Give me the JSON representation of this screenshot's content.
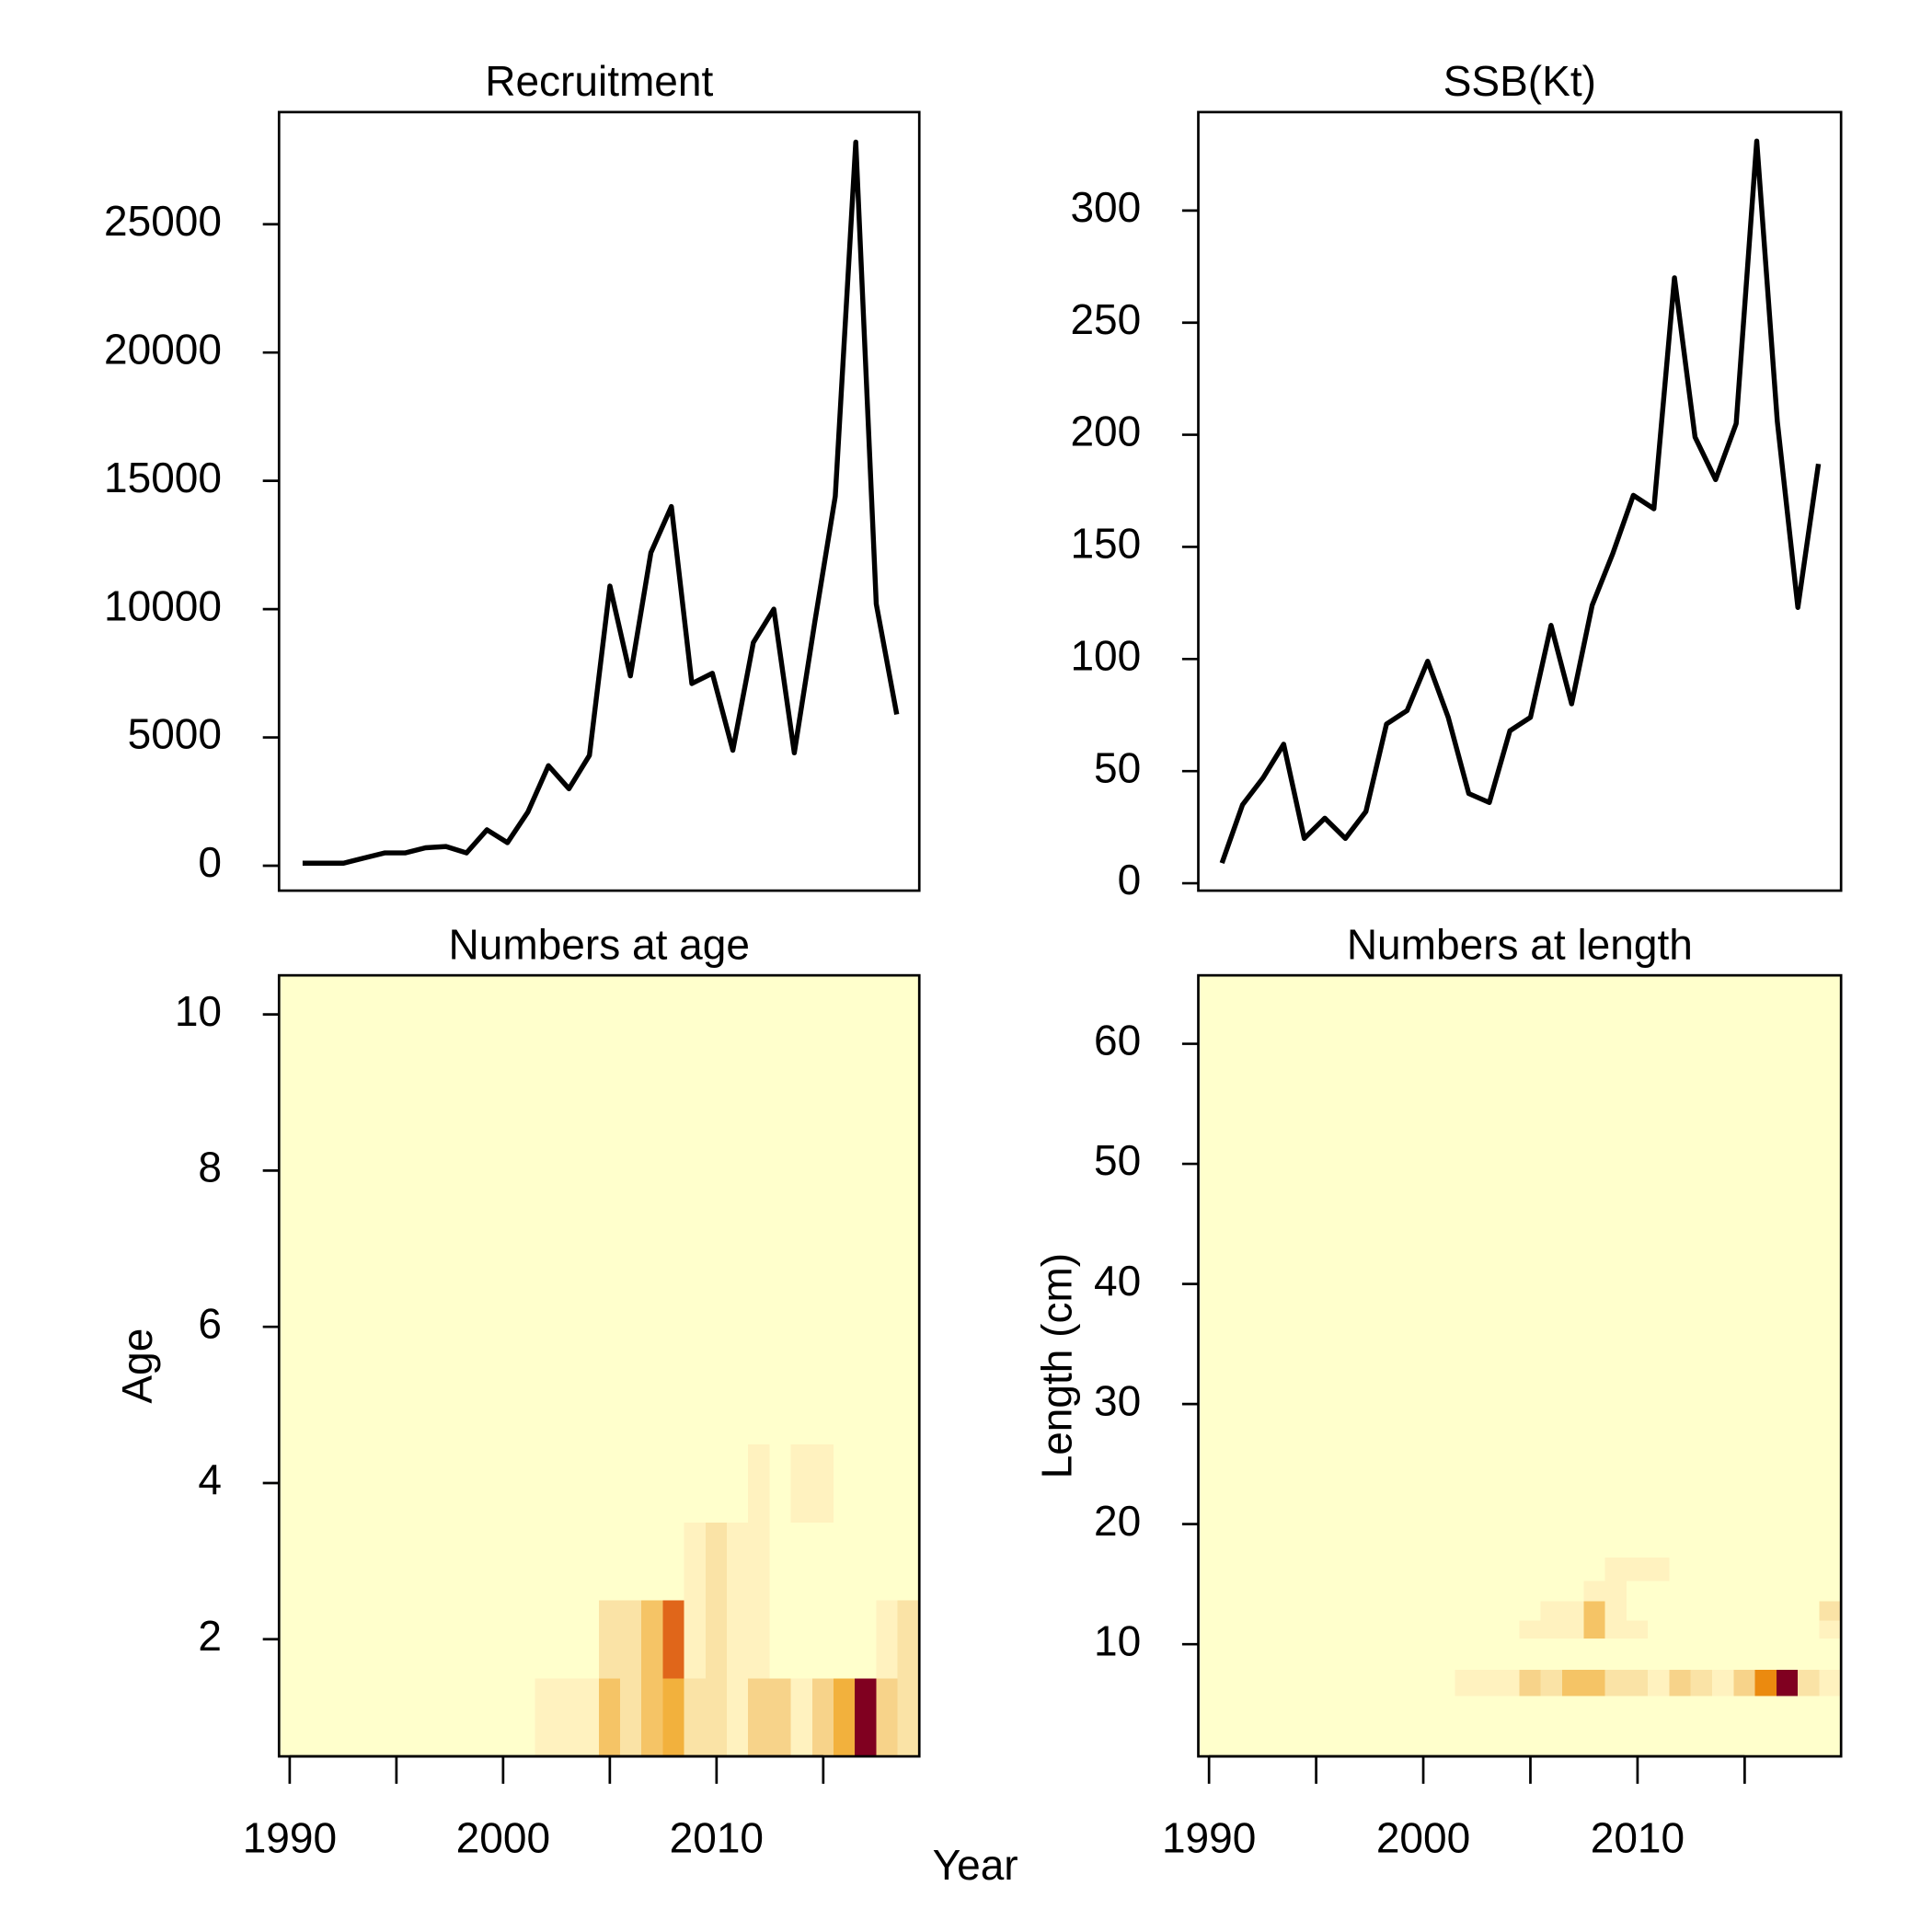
{
  "xlabel": "Year",
  "chart_data": [
    {
      "type": "line",
      "title": "Recruitment",
      "color": "#000000",
      "x": [
        1990,
        1991,
        1992,
        1993,
        1994,
        1995,
        1996,
        1997,
        1998,
        1999,
        2000,
        2001,
        2002,
        2003,
        2004,
        2005,
        2006,
        2007,
        2008,
        2009,
        2010,
        2011,
        2012,
        2013,
        2014,
        2015,
        2016,
        2017,
        2018,
        2019
      ],
      "values": [
        100,
        100,
        100,
        300,
        500,
        500,
        700,
        750,
        500,
        1400,
        900,
        2100,
        3900,
        3000,
        4300,
        10900,
        7400,
        12200,
        14000,
        7100,
        7500,
        4500,
        8700,
        10000,
        4400,
        9500,
        14400,
        28200,
        10200,
        5900
      ],
      "xlim": [
        1988.85,
        2020.1
      ],
      "ylim": [
        -970,
        29370
      ],
      "yticks": [
        0,
        5000,
        10000,
        15000,
        20000,
        25000
      ]
    },
    {
      "type": "line",
      "title": "SSB(Kt)",
      "color": "#000000",
      "x": [
        1990,
        1991,
        1992,
        1993,
        1994,
        1995,
        1996,
        1997,
        1998,
        1999,
        2000,
        2001,
        2002,
        2003,
        2004,
        2005,
        2006,
        2007,
        2008,
        2009,
        2010,
        2011,
        2012,
        2013,
        2014,
        2015,
        2016,
        2017,
        2018,
        2019
      ],
      "values": [
        9,
        35,
        47,
        62,
        20,
        29,
        20,
        32,
        71,
        77,
        99,
        74,
        40,
        36,
        68,
        74,
        115,
        80,
        124,
        147,
        173,
        167,
        270,
        199,
        180,
        205,
        331,
        206,
        123,
        187
      ],
      "xlim": [
        1988.85,
        2020.1
      ],
      "ylim": [
        -3.3,
        343.9
      ],
      "yticks": [
        0,
        50,
        100,
        150,
        200,
        250,
        300
      ]
    },
    {
      "type": "heatmap",
      "title": "Numbers at age",
      "ylabel": "Age",
      "palette": [
        "#FFFFCC",
        "#FFF2BF",
        "#FAE3A6",
        "#F7D38A",
        "#F5C466",
        "#F2B13D",
        "#F0A30F",
        "#EB8A0F",
        "#E0661A",
        "#D4401A",
        "#B31A1A",
        "#800020"
      ],
      "x": [
        1990,
        1991,
        1992,
        1993,
        1994,
        1995,
        1996,
        1997,
        1998,
        1999,
        2000,
        2001,
        2002,
        2003,
        2004,
        2005,
        2006,
        2007,
        2008,
        2009,
        2010,
        2011,
        2012,
        2013,
        2014,
        2015,
        2016,
        2017,
        2018,
        2019
      ],
      "ybins": [
        0.5,
        1.5,
        2.5,
        3.5,
        4.5,
        5.5,
        6.5,
        7.5,
        8.5,
        9.5,
        10.5
      ],
      "z": [
        [
          100,
          100,
          100,
          300,
          500,
          500,
          700,
          750,
          500,
          1400,
          900,
          2100,
          3900,
          3000,
          4300,
          10900,
          7400,
          12200,
          14000,
          7100,
          7500,
          4500,
          8700,
          10000,
          4400,
          9500,
          14400,
          28200,
          10200,
          5900
        ],
        [
          0,
          0,
          0,
          0,
          0,
          0,
          0,
          0,
          0,
          0,
          0,
          0,
          0,
          0,
          0,
          6000,
          6000,
          12000,
          22000,
          3000,
          6000,
          3000,
          3000,
          0,
          0,
          0,
          0,
          0,
          3000,
          7000
        ],
        [
          0,
          0,
          0,
          0,
          0,
          0,
          0,
          0,
          0,
          0,
          0,
          0,
          0,
          0,
          0,
          0,
          0,
          0,
          0,
          3000,
          6000,
          5000,
          5000,
          0,
          0,
          0,
          0,
          0,
          0,
          0
        ],
        [
          0,
          0,
          0,
          0,
          0,
          0,
          0,
          0,
          0,
          0,
          0,
          0,
          0,
          0,
          0,
          0,
          0,
          0,
          0,
          0,
          0,
          0,
          2900,
          0,
          2900,
          2900,
          0,
          0,
          0,
          0
        ],
        [
          0,
          0,
          0,
          0,
          0,
          0,
          0,
          0,
          0,
          0,
          0,
          0,
          0,
          0,
          0,
          0,
          0,
          0,
          0,
          0,
          0,
          0,
          0,
          0,
          0,
          0,
          0,
          0,
          0,
          0
        ],
        [
          0,
          0,
          0,
          0,
          0,
          0,
          0,
          0,
          0,
          0,
          0,
          0,
          0,
          0,
          0,
          0,
          0,
          0,
          0,
          0,
          0,
          0,
          0,
          0,
          0,
          0,
          0,
          0,
          0,
          0
        ],
        [
          0,
          0,
          0,
          0,
          0,
          0,
          0,
          0,
          0,
          0,
          0,
          0,
          0,
          0,
          0,
          0,
          0,
          0,
          0,
          0,
          0,
          0,
          0,
          0,
          0,
          0,
          0,
          0,
          0,
          0
        ],
        [
          0,
          0,
          0,
          0,
          0,
          0,
          0,
          0,
          0,
          0,
          0,
          0,
          0,
          0,
          0,
          0,
          0,
          0,
          0,
          0,
          0,
          0,
          0,
          0,
          0,
          0,
          0,
          0,
          0,
          0
        ],
        [
          0,
          0,
          0,
          0,
          0,
          0,
          0,
          0,
          0,
          0,
          0,
          0,
          0,
          0,
          0,
          0,
          0,
          0,
          0,
          0,
          0,
          0,
          0,
          0,
          0,
          0,
          0,
          0,
          0,
          0
        ],
        [
          0,
          0,
          0,
          0,
          0,
          0,
          0,
          0,
          0,
          0,
          0,
          0,
          0,
          0,
          0,
          0,
          0,
          0,
          0,
          0,
          0,
          0,
          0,
          0,
          0,
          0,
          0,
          0,
          0,
          0
        ]
      ],
      "xlim": [
        1989.5,
        2019.5
      ],
      "ylim": [
        0.5,
        10.5
      ],
      "yticks": [
        2,
        4,
        6,
        8,
        10
      ],
      "xticks": [
        1990,
        2000,
        2010
      ],
      "xminor": [
        1995,
        2005,
        2015
      ]
    },
    {
      "type": "heatmap",
      "title": "Numbers at length",
      "ylabel": "Length (cm)",
      "palette": [
        "#FFFFCC",
        "#FFF2BF",
        "#FAE3A6",
        "#F7D38A",
        "#F5C466",
        "#F2B13D",
        "#F0A30F",
        "#EB8A0F",
        "#E0661A",
        "#D4401A",
        "#B31A1A",
        "#800020"
      ],
      "x": [
        1990,
        1991,
        1992,
        1993,
        1994,
        1995,
        1996,
        1997,
        1998,
        1999,
        2000,
        2001,
        2002,
        2003,
        2004,
        2005,
        2006,
        2007,
        2008,
        2009,
        2010,
        2011,
        2012,
        2013,
        2014,
        2015,
        2016,
        2017,
        2018,
        2019
      ],
      "ybins": [
        5.7,
        7.9,
        10.5,
        12.0,
        13.6,
        15.3,
        17.2
      ],
      "z": [
        [
          0,
          0,
          0,
          0,
          0,
          0,
          0,
          0,
          0,
          0,
          0,
          0,
          10,
          10,
          12,
          35,
          20,
          45,
          45,
          25,
          20,
          10,
          30,
          25,
          10,
          30,
          70,
          100,
          25,
          12
        ],
        [
          0,
          0,
          0,
          0,
          0,
          0,
          0,
          0,
          0,
          0,
          0,
          0,
          0,
          0,
          0,
          0,
          0,
          0,
          0,
          0,
          0,
          0,
          0,
          0,
          0,
          0,
          0,
          0,
          0,
          0
        ],
        [
          0,
          0,
          0,
          0,
          0,
          0,
          0,
          0,
          0,
          0,
          0,
          0,
          0,
          0,
          0,
          10,
          10,
          10,
          45,
          10,
          10,
          0,
          0,
          0,
          0,
          0,
          0,
          0,
          0,
          12
        ],
        [
          0,
          0,
          0,
          0,
          0,
          0,
          0,
          0,
          0,
          0,
          0,
          0,
          0,
          0,
          0,
          0,
          10,
          10,
          45,
          10,
          0,
          0,
          0,
          0,
          0,
          0,
          0,
          0,
          0,
          20
        ],
        [
          0,
          0,
          0,
          0,
          0,
          0,
          0,
          0,
          0,
          0,
          0,
          0,
          0,
          0,
          0,
          0,
          0,
          0,
          10,
          10,
          0,
          0,
          0,
          0,
          0,
          0,
          0,
          0,
          0,
          0
        ],
        [
          0,
          0,
          0,
          0,
          0,
          0,
          0,
          0,
          0,
          0,
          0,
          0,
          0,
          0,
          0,
          0,
          0,
          0,
          0,
          10,
          10,
          10,
          0,
          0,
          0,
          0,
          0,
          0,
          0,
          0
        ]
      ],
      "xlim": [
        1989.5,
        2019.5
      ],
      "ylim": [
        0.66,
        65.7
      ],
      "yticks": [
        10,
        20,
        30,
        40,
        50,
        60
      ],
      "xticks": [
        1990,
        2000,
        2010
      ],
      "xminor": [
        1995,
        2005,
        2015
      ]
    }
  ]
}
